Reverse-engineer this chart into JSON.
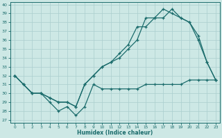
{
  "xlabel": "Humidex (Indice chaleur)",
  "x": [
    0,
    1,
    2,
    3,
    4,
    5,
    6,
    7,
    8,
    9,
    10,
    11,
    12,
    13,
    14,
    15,
    16,
    17,
    18,
    19,
    20,
    21,
    22,
    23
  ],
  "line_top": [
    32,
    31,
    30,
    30,
    29.5,
    29,
    29,
    28.5,
    31,
    32,
    33,
    33.5,
    34.5,
    35.5,
    37.5,
    37.5,
    38.5,
    39.5,
    39,
    38.5,
    38,
    36.5,
    33.5,
    31.5
  ],
  "line_mid": [
    32,
    31,
    30,
    30,
    29.5,
    29,
    29,
    28.5,
    31,
    32,
    33,
    33.5,
    34,
    35,
    36,
    38.5,
    38.5,
    38.5,
    39.5,
    38.5,
    38,
    36,
    33.5,
    31.5
  ],
  "line_bot": [
    32,
    31,
    30,
    30,
    29,
    28,
    28.5,
    27.5,
    28.5,
    31,
    30.5,
    30.5,
    30.5,
    30.5,
    30.5,
    31,
    31,
    31,
    31,
    31,
    31.5,
    31.5,
    31.5,
    31.5
  ],
  "ylim_min": 27,
  "ylim_max": 40,
  "yticks": [
    27,
    28,
    29,
    30,
    31,
    32,
    33,
    34,
    35,
    36,
    37,
    38,
    39,
    40
  ],
  "xticks": [
    0,
    1,
    2,
    3,
    4,
    5,
    6,
    7,
    8,
    9,
    10,
    11,
    12,
    13,
    14,
    15,
    16,
    17,
    18,
    19,
    20,
    21,
    22,
    23
  ],
  "bg_color": "#cde8e5",
  "line_color": "#1a6b6b",
  "grid_color": "#aacece"
}
